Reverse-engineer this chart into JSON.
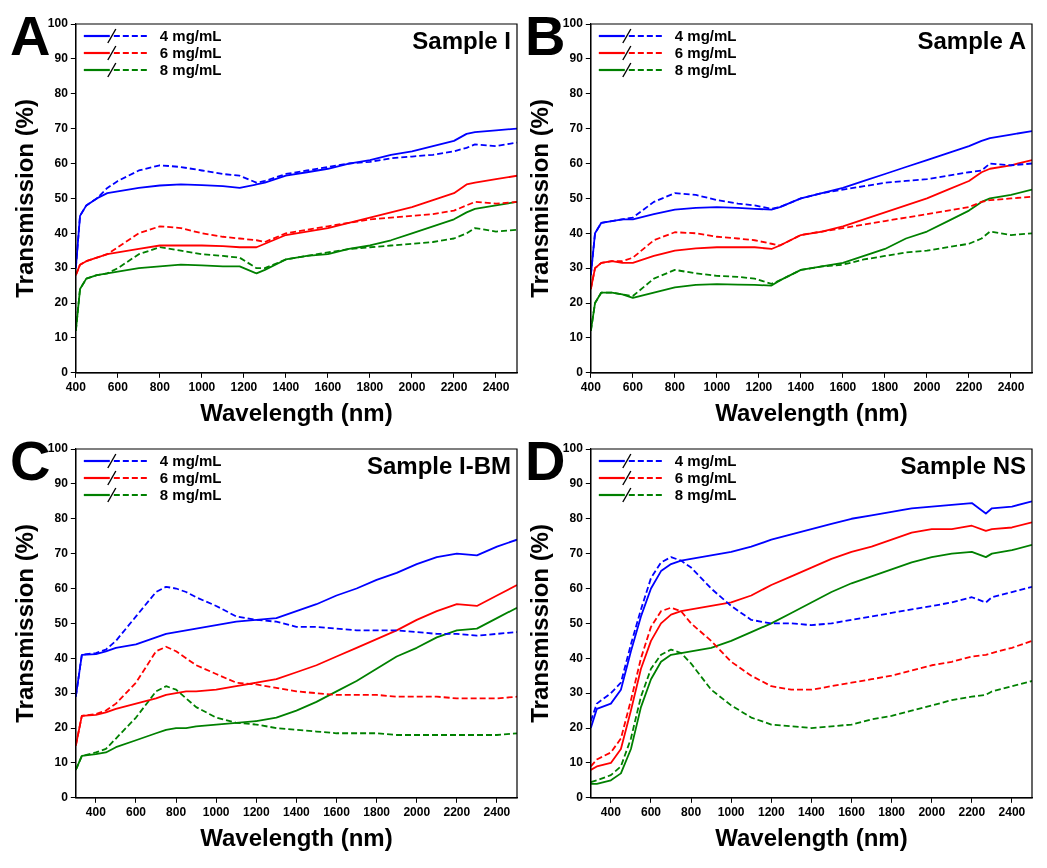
{
  "chart_data": [
    {
      "type": "line",
      "title": "Sample I",
      "annotations": [
        "A"
      ],
      "xlabel": "Wavelength (nm)",
      "ylabel": "Transmission (%)",
      "xlim": [
        400,
        2500
      ],
      "xticks": [
        400,
        600,
        800,
        1000,
        1200,
        1400,
        1600,
        1800,
        2000,
        2200,
        2400
      ],
      "ylim": [
        0,
        100
      ],
      "yticks": [
        0,
        10,
        20,
        30,
        40,
        50,
        60,
        70,
        80,
        90,
        100
      ],
      "grid": false,
      "legend": "top left",
      "marker": "none",
      "x": [
        400,
        420,
        450,
        500,
        550,
        600,
        700,
        800,
        900,
        1000,
        1100,
        1180,
        1260,
        1300,
        1400,
        1500,
        1600,
        1700,
        1800,
        1900,
        2000,
        2100,
        2200,
        2260,
        2300,
        2400,
        2500
      ],
      "series": [
        {
          "name": "4 mg/mL",
          "color": "#0000ff",
          "line_style": "solid",
          "values": [
            30,
            45,
            48,
            50,
            51.5,
            52,
            53,
            53.7,
            54,
            53.8,
            53.5,
            53,
            54,
            54.5,
            56.5,
            57.5,
            58.5,
            60,
            61,
            62.5,
            63.5,
            65,
            66.5,
            68.5,
            69,
            69.5,
            70
          ]
        },
        {
          "color": "#0000ff",
          "line_style": "dashed",
          "values": [
            30,
            45,
            48,
            50,
            53,
            55,
            58,
            59.5,
            59,
            58,
            57,
            56.5,
            54.5,
            55,
            57,
            58,
            59,
            60,
            60.5,
            61.5,
            62,
            62.5,
            63.5,
            64.5,
            65.5,
            65,
            66
          ]
        },
        {
          "name": "6 mg/mL",
          "color": "#ff0000",
          "line_style": "solid",
          "values": [
            28,
            31,
            32,
            33,
            34,
            34.5,
            35.5,
            36.5,
            36.5,
            36.5,
            36.3,
            36,
            36,
            37,
            39.5,
            40.5,
            41.5,
            43,
            44.5,
            46,
            47.5,
            49.5,
            51.5,
            54,
            54.5,
            55.5,
            56.5
          ]
        },
        {
          "color": "#ff0000",
          "line_style": "dashed",
          "values": [
            28,
            31,
            32,
            33,
            34,
            36,
            40,
            42,
            41.5,
            40,
            39,
            38.5,
            38,
            37.5,
            40,
            41,
            42,
            43,
            44,
            44.5,
            45,
            45.5,
            46.5,
            48,
            49,
            48.5,
            49
          ]
        },
        {
          "name": "8 mg/mL",
          "color": "#008000",
          "line_style": "solid",
          "values": [
            12,
            24,
            27,
            28,
            28.5,
            29,
            30,
            30.5,
            31,
            30.8,
            30.5,
            30.5,
            28.5,
            29.5,
            32.5,
            33.5,
            34,
            35.5,
            36.5,
            38,
            40,
            42,
            44,
            46,
            47,
            48,
            49
          ]
        },
        {
          "color": "#008000",
          "line_style": "dashed",
          "values": [
            12,
            24,
            27,
            28,
            28.5,
            30,
            34,
            36,
            35,
            34,
            33.5,
            33,
            30,
            30,
            32.5,
            33.5,
            34.5,
            35.5,
            36,
            36.5,
            37,
            37.5,
            38.5,
            40,
            41.5,
            40.5,
            41
          ]
        }
      ]
    },
    {
      "type": "line",
      "title": "Sample A",
      "annotations": [
        "B"
      ],
      "xlabel": "Wavelength (nm)",
      "ylabel": "Transmission (%)",
      "xlim": [
        400,
        2500
      ],
      "xticks": [
        400,
        600,
        800,
        1000,
        1200,
        1400,
        1600,
        1800,
        2000,
        2200,
        2400
      ],
      "ylim": [
        0,
        100
      ],
      "yticks": [
        0,
        10,
        20,
        30,
        40,
        50,
        60,
        70,
        80,
        90,
        100
      ],
      "grid": false,
      "legend": "top left",
      "marker": "none",
      "x": [
        400,
        420,
        450,
        500,
        550,
        600,
        700,
        800,
        900,
        1000,
        1100,
        1180,
        1260,
        1300,
        1400,
        1500,
        1600,
        1700,
        1800,
        1900,
        2000,
        2100,
        2200,
        2260,
        2300,
        2400,
        2500
      ],
      "series": [
        {
          "name": "4 mg/mL",
          "color": "#0000ff",
          "line_style": "solid",
          "values": [
            28,
            40,
            43,
            43.5,
            44,
            44,
            45.5,
            46.8,
            47.3,
            47.5,
            47.3,
            47,
            46.8,
            47.5,
            50,
            51.5,
            53,
            55,
            57,
            59,
            61,
            63,
            65,
            66.5,
            67.3,
            68.3,
            69.3
          ]
        },
        {
          "color": "#0000ff",
          "line_style": "dashed",
          "values": [
            28,
            40,
            43,
            43.5,
            44,
            44.5,
            49,
            51.5,
            51,
            49.5,
            48.5,
            48,
            47,
            47.5,
            50,
            51.5,
            52.5,
            53.5,
            54.5,
            55,
            55.5,
            56.5,
            57.5,
            58,
            60,
            59.5,
            60
          ]
        },
        {
          "name": "6 mg/mL",
          "color": "#ff0000",
          "line_style": "solid",
          "values": [
            24,
            30,
            31.5,
            32,
            31.5,
            31.5,
            33.5,
            35,
            35.7,
            36,
            36,
            36,
            35.5,
            36.5,
            39.5,
            40.5,
            42,
            44,
            46,
            48,
            50,
            52.5,
            55,
            57.5,
            58.5,
            59.5,
            61
          ]
        },
        {
          "color": "#ff0000",
          "line_style": "dashed",
          "values": [
            24,
            30,
            31.5,
            32,
            32,
            33,
            38,
            40.3,
            40,
            39,
            38.5,
            38,
            37,
            36.5,
            39.5,
            40.5,
            41.5,
            42.5,
            43.5,
            44.5,
            45.5,
            46.5,
            47.5,
            49,
            49.5,
            50,
            50.5
          ]
        },
        {
          "name": "8 mg/mL",
          "color": "#008000",
          "line_style": "solid",
          "values": [
            12,
            20,
            23,
            23,
            22.5,
            21.5,
            23,
            24.5,
            25.2,
            25.4,
            25.3,
            25.2,
            25,
            26.5,
            29.5,
            30.5,
            31.5,
            33.5,
            35.5,
            38.5,
            40.5,
            43.5,
            46.5,
            49,
            50,
            51,
            52.5
          ]
        },
        {
          "color": "#008000",
          "line_style": "dashed",
          "values": [
            12,
            20,
            23,
            23,
            22.5,
            22,
            27,
            29.5,
            28.5,
            27.8,
            27.5,
            27,
            25.5,
            26.5,
            29.5,
            30.5,
            31,
            32.5,
            33.5,
            34.5,
            35,
            36,
            37,
            38.5,
            40.5,
            39.5,
            40
          ]
        }
      ]
    },
    {
      "type": "line",
      "title": "Sample I-BM",
      "annotations": [
        "C"
      ],
      "xlabel": "Wavelength (nm)",
      "ylabel": "Transmission (%)",
      "xlim": [
        300,
        2500
      ],
      "xticks": [
        400,
        600,
        800,
        1000,
        1200,
        1400,
        1600,
        1800,
        2000,
        2200,
        2400
      ],
      "ylim": [
        0,
        100
      ],
      "yticks": [
        0,
        10,
        20,
        30,
        40,
        50,
        60,
        70,
        80,
        90,
        100
      ],
      "grid": false,
      "legend": "top left",
      "marker": "none",
      "x": [
        300,
        330,
        400,
        450,
        500,
        600,
        700,
        750,
        800,
        850,
        900,
        1000,
        1100,
        1200,
        1300,
        1400,
        1500,
        1600,
        1700,
        1800,
        1900,
        2000,
        2100,
        2200,
        2300,
        2400,
        2500
      ],
      "series": [
        {
          "name": "4 mg/mL",
          "color": "#0000ff",
          "line_style": "solid",
          "values": [
            29,
            41,
            41.2,
            42,
            43,
            44,
            46,
            47,
            47.5,
            48,
            48.5,
            49.5,
            50.5,
            51,
            51.5,
            53.5,
            55.5,
            58,
            60,
            62.5,
            64.5,
            67,
            69,
            70,
            69.5,
            72,
            74
          ]
        },
        {
          "color": "#0000ff",
          "line_style": "dashed",
          "values": [
            29,
            41,
            41.5,
            42.5,
            45,
            52,
            59,
            60.5,
            60,
            59,
            57.5,
            55,
            52,
            51,
            50.5,
            49,
            49,
            48.5,
            48,
            48,
            48,
            47.5,
            47,
            47,
            46.5,
            47,
            47.5
          ]
        },
        {
          "name": "6 mg/mL",
          "color": "#ff0000",
          "line_style": "solid",
          "values": [
            15,
            23.5,
            23.8,
            24.5,
            25.5,
            27,
            28.5,
            29.5,
            30,
            30.5,
            30.5,
            31,
            32,
            33,
            34,
            36,
            38,
            40.5,
            43,
            45.5,
            48,
            51,
            53.5,
            55.5,
            55,
            58,
            61
          ]
        },
        {
          "color": "#ff0000",
          "line_style": "dashed",
          "values": [
            15,
            23.5,
            24,
            25,
            27,
            33,
            42,
            43.3,
            42,
            40,
            38,
            35.5,
            33,
            32.5,
            31.5,
            30.5,
            30,
            29.5,
            29.5,
            29.5,
            29,
            29,
            29,
            28.5,
            28.5,
            28.5,
            29
          ]
        },
        {
          "name": "8 mg/mL",
          "color": "#008000",
          "line_style": "solid",
          "values": [
            8,
            12,
            12.5,
            13,
            14.5,
            16.5,
            18.5,
            19.5,
            20,
            20,
            20.5,
            21,
            21.5,
            22,
            23,
            25,
            27.5,
            30.5,
            33.5,
            37,
            40.5,
            43,
            46,
            48,
            48.5,
            51.5,
            54.5
          ]
        },
        {
          "color": "#008000",
          "line_style": "dashed",
          "values": [
            8,
            12,
            13,
            14,
            17,
            23,
            30.5,
            32,
            31,
            28.5,
            26,
            23,
            21.5,
            21,
            20,
            19.5,
            19,
            18.5,
            18.5,
            18.5,
            18,
            18,
            18,
            18,
            18,
            18,
            18.5
          ]
        }
      ]
    },
    {
      "type": "line",
      "title": "Sample NS",
      "annotations": [
        "D"
      ],
      "xlabel": "Wavelength (nm)",
      "ylabel": "Transmission (%)",
      "xlim": [
        300,
        2500
      ],
      "xticks": [
        400,
        600,
        800,
        1000,
        1200,
        1400,
        1600,
        1800,
        2000,
        2200,
        2400
      ],
      "ylim": [
        0,
        100
      ],
      "yticks": [
        0,
        10,
        20,
        30,
        40,
        50,
        60,
        70,
        80,
        90,
        100
      ],
      "grid": false,
      "legend": "top left",
      "marker": "none",
      "x": [
        300,
        330,
        400,
        450,
        500,
        550,
        600,
        650,
        700,
        750,
        800,
        900,
        1000,
        1100,
        1200,
        1300,
        1400,
        1500,
        1600,
        1700,
        1800,
        1900,
        2000,
        2100,
        2200,
        2270,
        2300,
        2400,
        2500
      ],
      "series": [
        {
          "name": "4 mg/mL",
          "color": "#0000ff",
          "line_style": "solid",
          "values": [
            20,
            25.5,
            27,
            31,
            42,
            52,
            60,
            65,
            67,
            68,
            68.5,
            69.5,
            70.5,
            72,
            74,
            75.5,
            77,
            78.5,
            80,
            81,
            82,
            83,
            83.5,
            84,
            84.5,
            81.5,
            83,
            83.5,
            85
          ]
        },
        {
          "color": "#0000ff",
          "line_style": "dashed",
          "values": [
            22,
            27,
            30,
            33,
            44,
            54,
            63,
            67.5,
            69,
            68,
            66,
            60,
            55,
            51,
            50,
            50,
            49.5,
            50,
            51,
            52,
            53,
            54,
            55,
            56,
            57.5,
            56,
            57.5,
            59,
            60.5
          ]
        },
        {
          "name": "6 mg/mL",
          "color": "#ff0000",
          "line_style": "solid",
          "values": [
            8,
            9,
            10,
            14,
            25,
            37,
            45,
            50,
            52.5,
            53.5,
            54,
            55,
            56,
            58,
            61,
            63.5,
            66,
            68.5,
            70.5,
            72,
            74,
            76,
            77,
            77,
            78,
            76.5,
            77,
            77.5,
            79
          ]
        },
        {
          "color": "#ff0000",
          "line_style": "dashed",
          "values": [
            9,
            11,
            13,
            17,
            28,
            40,
            49,
            53.5,
            54.5,
            53.5,
            50,
            45,
            39,
            35,
            32,
            31,
            31,
            32,
            33,
            34,
            35,
            36.5,
            38,
            39,
            40.5,
            41,
            41.5,
            43,
            45
          ]
        },
        {
          "name": "8 mg/mL",
          "color": "#008000",
          "line_style": "solid",
          "values": [
            4,
            4,
            5,
            7,
            14,
            26,
            34,
            39,
            41,
            41.5,
            42,
            43,
            45,
            47.5,
            50,
            53,
            56,
            59,
            61.5,
            63.5,
            65.5,
            67.5,
            69,
            70,
            70.5,
            69,
            70,
            71,
            72.5
          ]
        },
        {
          "color": "#008000",
          "line_style": "dashed",
          "values": [
            4.5,
            5,
            6.5,
            9,
            17,
            29,
            37,
            41,
            42.5,
            41.5,
            38.5,
            31,
            26.5,
            23,
            21,
            20.5,
            20,
            20.5,
            21,
            22.5,
            23.5,
            25,
            26.5,
            28,
            29,
            29.5,
            30.5,
            32,
            33.5
          ]
        }
      ]
    }
  ]
}
